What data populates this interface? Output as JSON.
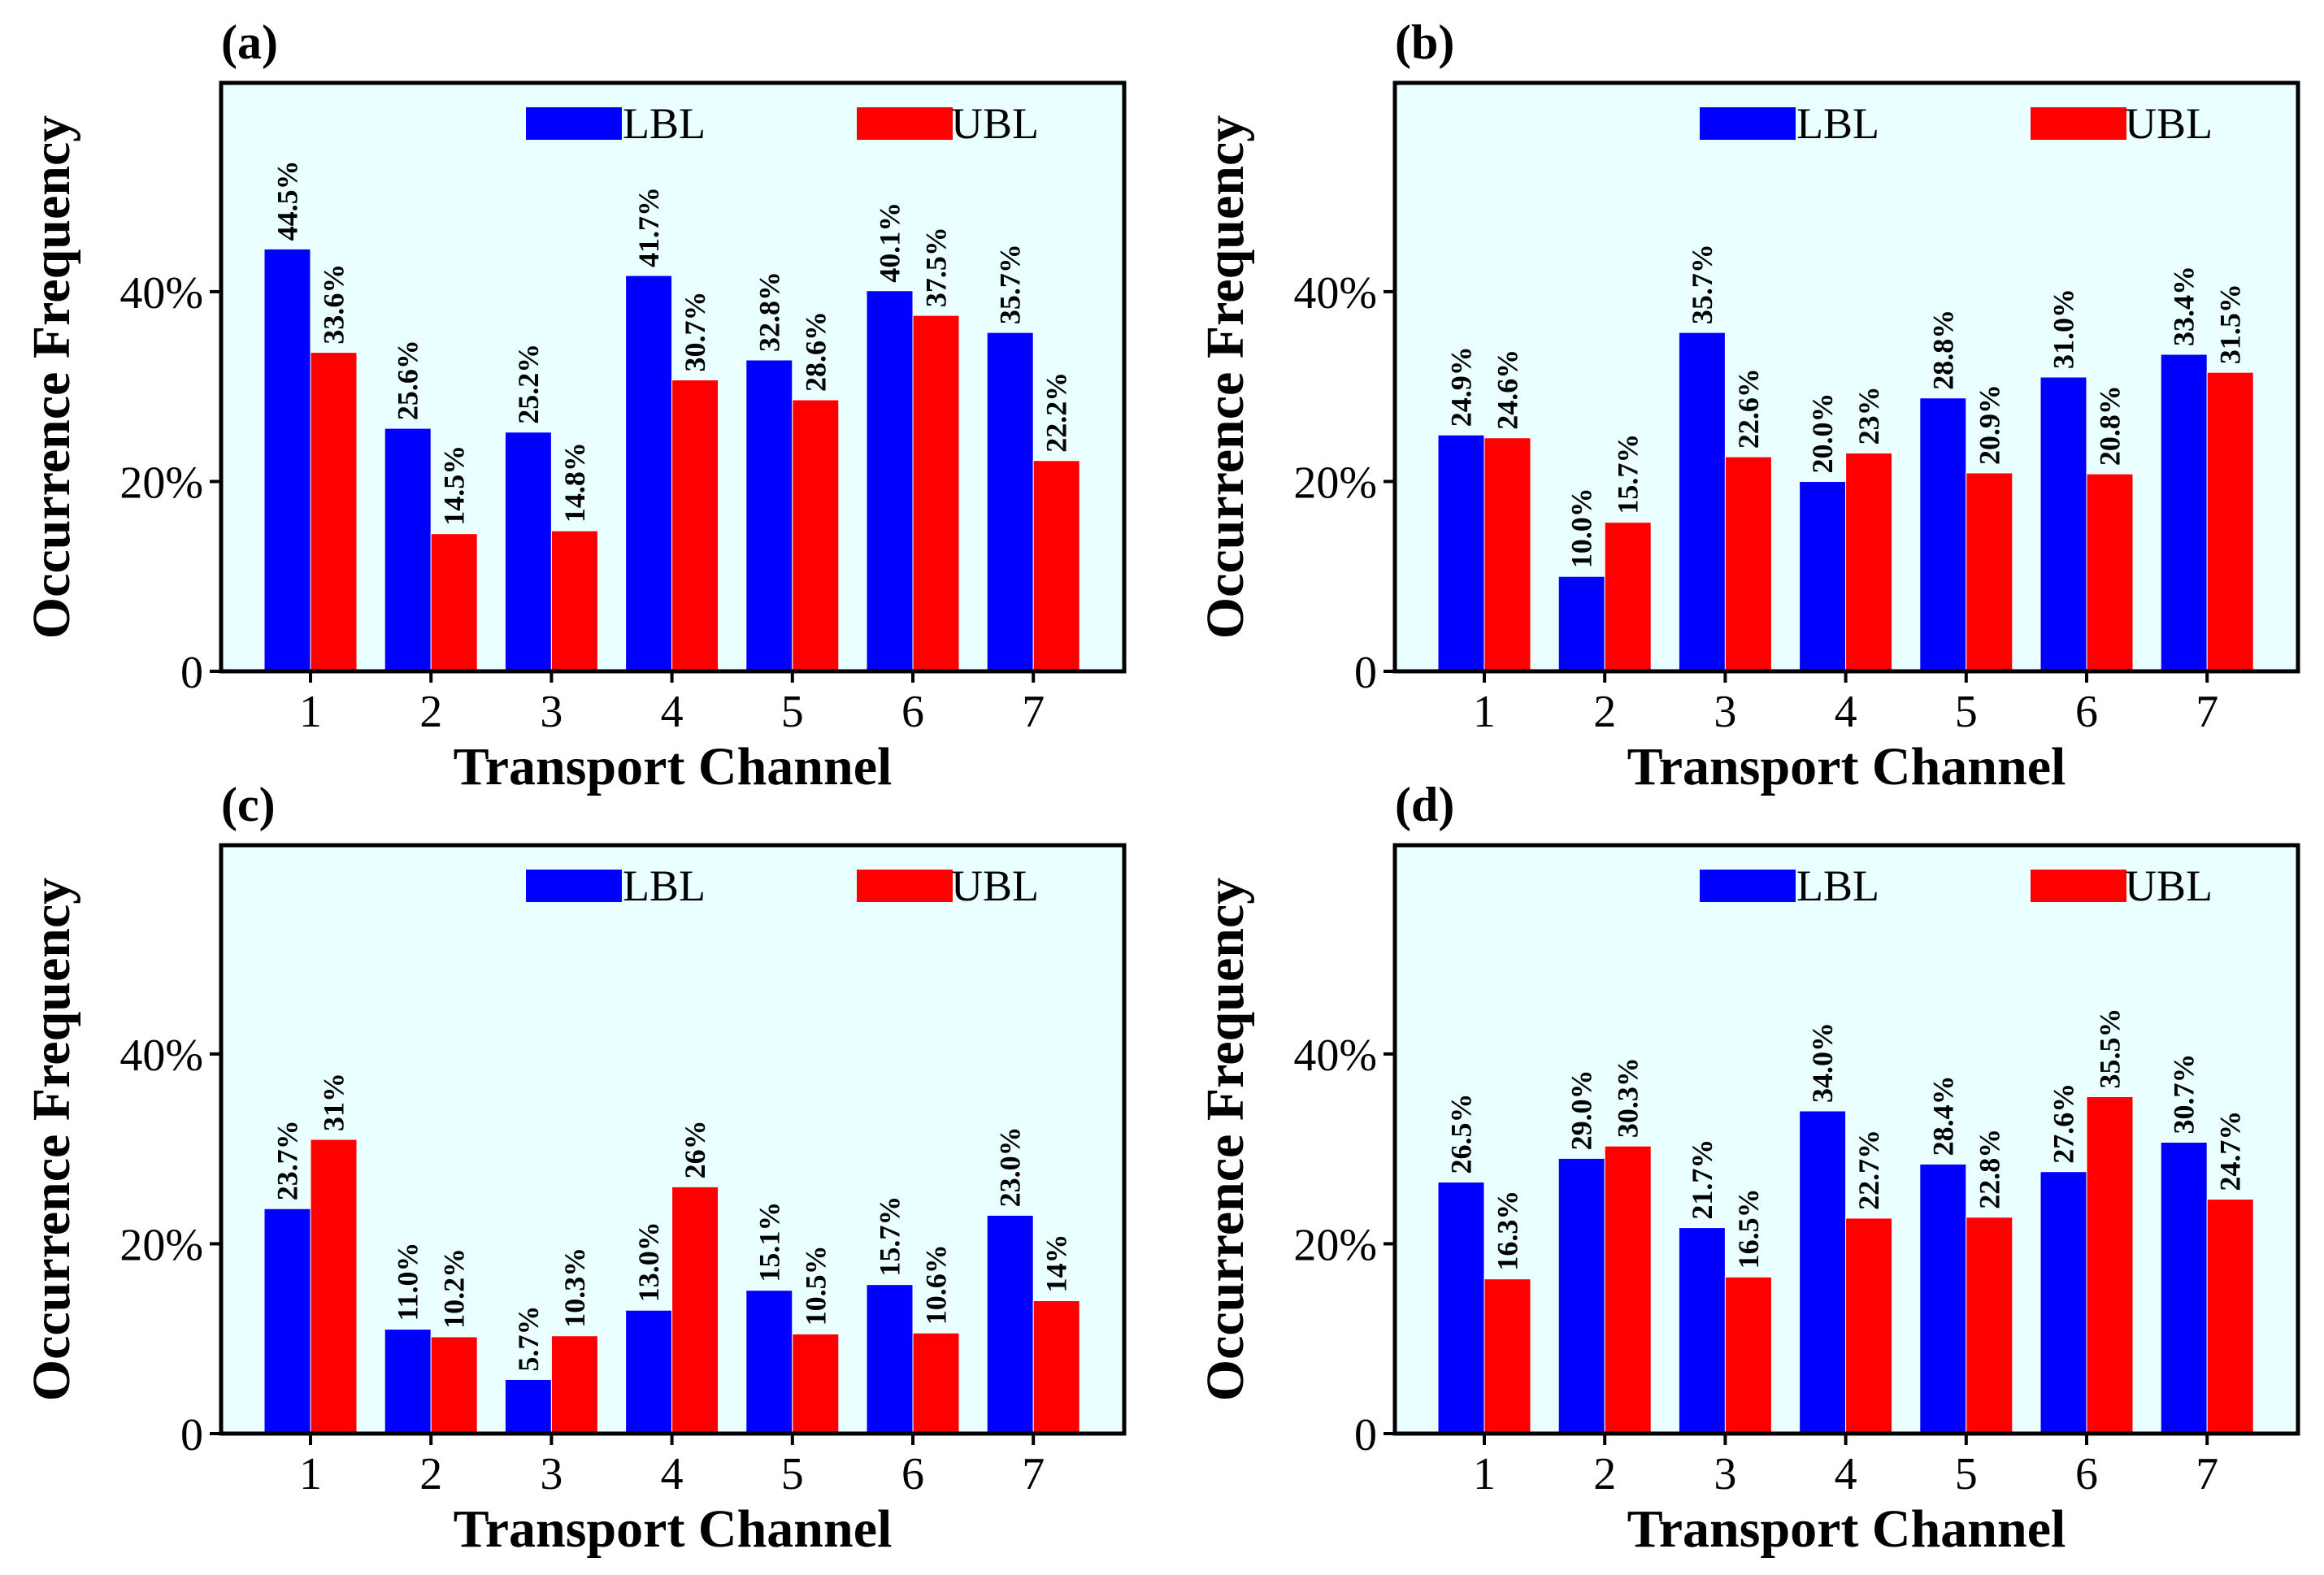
{
  "chart_data": [
    {
      "panel": "(a)",
      "type": "bar",
      "xlabel": "Transport Channel",
      "ylabel": "Occurrence Frequency",
      "categories": [
        "1",
        "2",
        "3",
        "4",
        "5",
        "6",
        "7"
      ],
      "ylim": [
        0,
        0.62
      ],
      "yticks": [
        0,
        0.2,
        0.4
      ],
      "ytick_labels": [
        "0",
        "20%",
        "40%"
      ],
      "legend_position": "top-right",
      "series": [
        {
          "name": "LBL",
          "color": "#0000ff",
          "values": [
            44.5,
            25.6,
            25.2,
            41.7,
            32.8,
            40.1,
            35.7
          ],
          "labels": [
            "44.5%",
            "25.6%",
            "25.2%",
            "41.7%",
            "32.8%",
            "40.1%",
            "35.7%"
          ]
        },
        {
          "name": "UBL",
          "color": "#ff0000",
          "values": [
            33.6,
            14.5,
            14.8,
            30.7,
            28.6,
            37.5,
            22.2
          ],
          "labels": [
            "33.6%",
            "14.5%",
            "14.8%",
            "30.7%",
            "28.6%",
            "37.5%",
            "22.2%"
          ]
        }
      ]
    },
    {
      "panel": "(b)",
      "type": "bar",
      "xlabel": "Transport Channel",
      "ylabel": "Occurrence Frequency",
      "categories": [
        "1",
        "2",
        "3",
        "4",
        "5",
        "6",
        "7"
      ],
      "ylim": [
        0,
        0.62
      ],
      "yticks": [
        0,
        0.2,
        0.4
      ],
      "ytick_labels": [
        "0",
        "20%",
        "40%"
      ],
      "legend_position": "top-right",
      "series": [
        {
          "name": "LBL",
          "color": "#0000ff",
          "values": [
            24.9,
            10.0,
            35.7,
            20.0,
            28.8,
            31.0,
            33.4
          ],
          "labels": [
            "24.9%",
            "10.0%",
            "35.7%",
            "20.0%",
            "28.8%",
            "31.0%",
            "33.4%"
          ]
        },
        {
          "name": "UBL",
          "color": "#ff0000",
          "values": [
            24.6,
            15.7,
            22.6,
            23.0,
            20.9,
            20.8,
            31.5
          ],
          "labels": [
            "24.6%",
            "15.7%",
            "22.6%",
            "23%",
            "20.9%",
            "20.8%",
            "31.5%"
          ]
        }
      ]
    },
    {
      "panel": "(c)",
      "type": "bar",
      "xlabel": "Transport Channel",
      "ylabel": "Occurrence Frequency",
      "categories": [
        "1",
        "2",
        "3",
        "4",
        "5",
        "6",
        "7"
      ],
      "ylim": [
        0,
        0.62
      ],
      "yticks": [
        0,
        0.2,
        0.4
      ],
      "ytick_labels": [
        "0",
        "20%",
        "40%"
      ],
      "legend_position": "top-right",
      "series": [
        {
          "name": "LBL",
          "color": "#0000ff",
          "values": [
            23.7,
            11.0,
            5.7,
            13.0,
            15.1,
            15.7,
            23.0
          ],
          "labels": [
            "23.7%",
            "11.0%",
            "5.7%",
            "13.0%",
            "15.1%",
            "15.7%",
            "23.0%"
          ]
        },
        {
          "name": "UBL",
          "color": "#ff0000",
          "values": [
            31.0,
            10.2,
            10.3,
            26.0,
            10.5,
            10.6,
            14.0
          ],
          "labels": [
            "31%",
            "10.2%",
            "10.3%",
            "26%",
            "10.5%",
            "10.6%",
            "14%"
          ]
        }
      ]
    },
    {
      "panel": "(d)",
      "type": "bar",
      "xlabel": "Transport Channel",
      "ylabel": "Occurrence Frequency",
      "categories": [
        "1",
        "2",
        "3",
        "4",
        "5",
        "6",
        "7"
      ],
      "ylim": [
        0,
        0.62
      ],
      "yticks": [
        0,
        0.2,
        0.4
      ],
      "ytick_labels": [
        "0",
        "20%",
        "40%"
      ],
      "legend_position": "top-right",
      "series": [
        {
          "name": "LBL",
          "color": "#0000ff",
          "values": [
            26.5,
            29.0,
            21.7,
            34.0,
            28.4,
            27.6,
            30.7
          ],
          "labels": [
            "26.5%",
            "29.0%",
            "21.7%",
            "34.0%",
            "28.4%",
            "27.6%",
            "30.7%"
          ]
        },
        {
          "name": "UBL",
          "color": "#ff0000",
          "values": [
            16.3,
            30.3,
            16.5,
            22.7,
            22.8,
            35.5,
            24.7
          ],
          "labels": [
            "16.3%",
            "30.3%",
            "16.5%",
            "22.7%",
            "22.8%",
            "35.5%",
            "24.7%"
          ]
        }
      ]
    }
  ],
  "colors": {
    "plot_background": "#eaffff",
    "axis": "#000000"
  }
}
